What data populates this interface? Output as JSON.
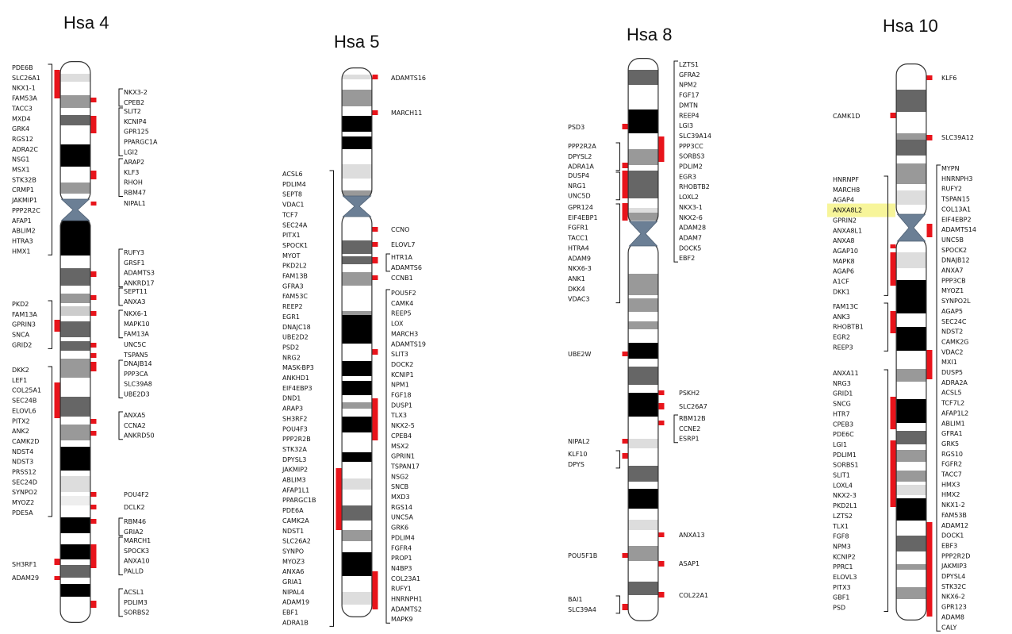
{
  "highlight_color": "#f7f59a",
  "marker_color": "#e8141b",
  "chromosomes": [
    {
      "title": "Hsa 4",
      "left_groups": [
        {
          "genes": [
            "PDE6B",
            "SLC26A1",
            "NKX1-1",
            "FAM53A",
            "TACC3",
            "MXD4",
            "GRK4",
            "RGS12",
            "ADRA2C",
            "NSG1",
            "MSX1",
            "STK32B",
            "CRMP1",
            "JAKMIP1",
            "PPP2R2C",
            "AFAP1",
            "ABLIM2",
            "HTRA3",
            "HMX1"
          ]
        },
        {
          "genes": [
            "PKD2",
            "FAM13A",
            "GPRIN3",
            "SNCA",
            "GRID2"
          ]
        },
        {
          "genes": [
            "DKK2",
            "LEF1",
            "COL25A1",
            "SEC24B",
            "ELOVL6",
            "PITX2",
            "ANK2",
            "CAMK2D",
            "NDST4",
            "NDST3",
            "PRSS12",
            "SEC24D",
            "SYNPO2",
            "MYOZ2",
            "PDE5A"
          ]
        },
        {
          "genes": [
            "SH3RF1"
          ]
        },
        {
          "genes": [
            "ADAM29"
          ]
        }
      ],
      "right_groups": [
        {
          "genes": [
            "NKX3-2",
            "CPEB2"
          ]
        },
        {
          "genes": [
            "SLIT2",
            "KCNIP4",
            "GPR125",
            "PPARGC1A",
            "LGI2"
          ]
        },
        {
          "genes": [
            "ARAP2",
            "KLF3",
            "RHOH",
            "RBM47"
          ]
        },
        {
          "genes": [
            "NIPAL1"
          ]
        },
        {
          "genes": [
            "RUFY3",
            "GRSF1",
            "ADAMTS3",
            "ANKRD17"
          ]
        },
        {
          "genes": [
            "SEPT11",
            "ANXA3"
          ]
        },
        {
          "genes": [
            "NKX6-1",
            "MAPK10",
            "FAM13A"
          ]
        },
        {
          "genes": [
            "UNC5C"
          ]
        },
        {
          "genes": [
            "TSPAN5"
          ]
        },
        {
          "genes": [
            "DNAJB14",
            "PPP3CA",
            "SLC39A8",
            "UBE2D3"
          ]
        },
        {
          "genes": [
            "ANXA5",
            "CCNA2",
            "ANKRD50"
          ]
        },
        {
          "genes": [
            "POU4F2"
          ]
        },
        {
          "genes": [
            "DCLK2"
          ]
        },
        {
          "genes": [
            "RBM46",
            "GRIA2"
          ]
        },
        {
          "genes": [
            "MARCH1",
            "SPOCK3",
            "ANXA10",
            "PALLD"
          ]
        },
        {
          "genes": [
            "ACSL1",
            "PDLIM3",
            "SORBS2"
          ]
        }
      ]
    },
    {
      "title": "Hsa 5",
      "left_groups": [
        {
          "genes": [
            "ACSL6",
            "PDLIM4",
            "SEPT8",
            "VDAC1",
            "TCF7",
            "SEC24A",
            "PITX1",
            "SPOCK1",
            "MYOT",
            "PKD2L2",
            "FAM13B",
            "GFRA3",
            "FAM53C",
            "REEP2",
            "EGR1",
            "DNAJC18",
            "UBE2D2",
            "PSD2",
            "NRG2",
            "MASK-BP3",
            "ANKHD1",
            "EIF4EBP3",
            "DND1",
            "ARAP3",
            "SH3RF2",
            "POU4F3",
            "PPP2R2B",
            "STK32A",
            "DPYSL3",
            "JAKMIP2",
            "ABLIM3",
            "AFAP1L1",
            "PPARGC1B",
            "PDE6A",
            "CAMK2A",
            "NDST1",
            "SLC26A2",
            "SYNPO",
            "MYOZ3",
            "ANXA6",
            "GRIA1",
            "NIPAL4",
            "ADAM19",
            "EBF1",
            "ADRA1B"
          ]
        }
      ],
      "right_groups": [
        {
          "genes": [
            "ADAMTS16"
          ]
        },
        {
          "genes": [
            "MARCH11"
          ]
        },
        {
          "genes": [
            "CCNO"
          ]
        },
        {
          "genes": [
            "ELOVL7"
          ]
        },
        {
          "genes": [
            "HTR1A",
            "ADAMTS6"
          ]
        },
        {
          "genes": [
            "CCNB1"
          ]
        },
        {
          "genes": [
            "POU5F2",
            "CAMK4",
            "REEP5",
            "LOX",
            "MARCH3",
            "ADAMTS19",
            "SLIT3",
            "DOCK2",
            "KCNIP1",
            "NPM1",
            "FGF18",
            "DUSP1",
            "TLX3",
            "NKX2-5",
            "CPEB4",
            "MSX2",
            "GPRIN1",
            "TSPAN17",
            "NSG2",
            "SNCB",
            "MXD3",
            "RGS14",
            "UNC5A",
            "GRK6",
            "PDLIM4",
            "FGFR4",
            "PROP1",
            "N4BP3",
            "COL23A1",
            "RUFY1",
            "HNRNPH1",
            "ADAMTS2",
            "MAPK9"
          ]
        }
      ]
    },
    {
      "title": "Hsa 8",
      "left_groups": [
        {
          "genes": [
            "PSD3"
          ]
        },
        {
          "genes": [
            "PPP2R2A",
            "DPYSL2",
            "ADRA1A"
          ]
        },
        {
          "genes": [
            "DUSP4",
            "NRG1",
            "UNC5D"
          ]
        },
        {
          "genes": [
            "GPR124",
            "EIF4EBP1",
            "FGFR1",
            "TACC1",
            "HTRA4",
            "ADAM9",
            "NKX6-3",
            "ANK1",
            "DKK4",
            "VDAC3"
          ]
        },
        {
          "genes": [
            "UBE2W"
          ]
        },
        {
          "genes": [
            "NIPAL2"
          ]
        },
        {
          "genes": [
            "KLF10",
            "DPYS"
          ]
        },
        {
          "genes": [
            "POU5F1B"
          ]
        },
        {
          "genes": [
            "BAI1",
            "SLC39A4"
          ]
        }
      ],
      "right_groups": [
        {
          "genes": [
            "LZTS1",
            "GFRA2",
            "NPM2",
            "FGF17",
            "DMTN",
            "REEP4",
            "LGI3",
            "SLC39A14",
            "PPP3CC",
            "SORBS3",
            "PDLIM2",
            "EGR3",
            "RHOBTB2",
            "LOXL2",
            "NKX3-1",
            "NKX2-6",
            "ADAM28",
            "ADAM7",
            "DOCK5",
            "EBF2"
          ]
        },
        {
          "genes": [
            "PSKH2"
          ]
        },
        {
          "genes": [
            "SLC26A7"
          ]
        },
        {
          "genes": [
            "RBM12B",
            "CCNE2",
            "ESRP1"
          ]
        },
        {
          "genes": [
            "ANXA13"
          ]
        },
        {
          "genes": [
            "ASAP1"
          ]
        },
        {
          "genes": [
            "COL22A1"
          ]
        }
      ]
    },
    {
      "title": "Hsa 10",
      "left_groups": [
        {
          "genes": [
            "CAMK1D"
          ]
        },
        {
          "genes": [
            "HNRNPF",
            "MARCH8",
            "AGAP4",
            "ANXA8L2",
            "GPRIN2",
            "ANXA8L1",
            "ANXA8",
            "AGAP10",
            "MAPK8",
            "AGAP6",
            "A1CF",
            "DKK1"
          ]
        },
        {
          "genes": [
            "FAM13C",
            "ANK3",
            "RHOBTB1",
            "EGR2",
            "REEP3"
          ]
        },
        {
          "genes": [
            "ANXA11",
            "NRG3",
            "GRID1",
            "SNCG",
            "HTR7",
            "CPEB3",
            "PDE6C",
            "LGI1",
            "PDLIM1",
            "SORBS1",
            "SLIT1",
            "LOXL4",
            "NKX2-3",
            "PKD2L1",
            "LZTS2",
            "TLX1",
            "FGF8",
            "NPM3",
            "KCNIP2",
            "PPRC1",
            "ELOVL3",
            "PITX3",
            "GBF1",
            "PSD"
          ]
        }
      ],
      "right_groups": [
        {
          "genes": [
            "KLF6"
          ]
        },
        {
          "genes": [
            "SLC39A12"
          ]
        },
        {
          "genes": [
            "MYPN",
            "HNRNPH3",
            "RUFY2",
            "TSPAN15",
            "COL13A1",
            "EIF4EBP2",
            "ADAMTS14",
            "UNC5B",
            "SPOCK2",
            "DNAJB12",
            "ANXA7",
            "PPP3CB",
            "MYOZ1",
            "SYNPO2L",
            "AGAP5",
            "SEC24C",
            "NDST2",
            "CAMK2G",
            "VDAC2",
            "MXI1",
            "DUSP5",
            "ADRA2A",
            "ACSL5",
            "TCF7L2",
            "AFAP1L2",
            "ABLIM1",
            "GFRA1",
            "GRK5",
            "RGS10",
            "FGFR2",
            "TACC7",
            "HMX3",
            "HMX2",
            "NKX1-2",
            "FAM53B",
            "ADAM12",
            "DOCK1",
            "EBF3",
            "PPP2R2D",
            "JAKMIP3",
            "DPYSL4",
            "STK32C",
            "NKX6-2",
            "GPR123",
            "ADAM8",
            "CALY"
          ]
        }
      ],
      "highlighted_gene": "ANXA8L2"
    }
  ]
}
